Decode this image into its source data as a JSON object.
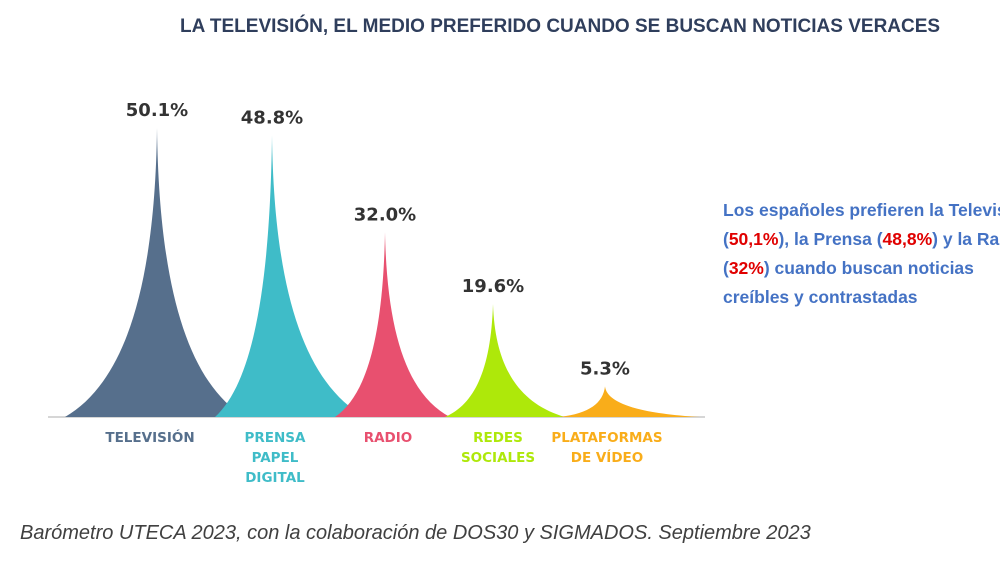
{
  "title": "LA TELEVISIÓN, EL MEDIO PREFERIDO CUANDO SE BUSCAN NOTICIAS VERACES",
  "chart_data": {
    "type": "area",
    "title": "",
    "categories": [
      [
        "TELEVISIÓN"
      ],
      [
        "PRENSA",
        "PAPEL",
        "DIGITAL"
      ],
      [
        "RADIO"
      ],
      [
        "REDES",
        "SOCIALES"
      ],
      [
        "PLATAFORMAS",
        "DE VÍDEO"
      ]
    ],
    "values": [
      50.1,
      48.8,
      32.0,
      19.6,
      5.3
    ],
    "data_labels": [
      "50.1%",
      "48.8%",
      "32.0%",
      "19.6%",
      "5.3%"
    ],
    "colors": [
      "#566f8c",
      "#3fbcc8",
      "#e8506f",
      "#aee80a",
      "#f9ad1a"
    ],
    "label_colors": [
      "#566f8c",
      "#3fbcc8",
      "#e8506f",
      "#aee80a",
      "#f9ad1a"
    ],
    "ylim": [
      0,
      50.1
    ],
    "grid": false,
    "legend": "none"
  },
  "note": {
    "line1": "Los españoles prefieren la Televisión",
    "line2_a": "(",
    "line2_b": "50,1%",
    "line2_c": "), la Prensa  (",
    "line2_d": "48,8%",
    "line2_e": ") y la Radio",
    "line3_a": "(",
    "line3_b": "32%",
    "line3_c": ") cuando buscan noticias",
    "line4": "creíbles y contrastadas"
  },
  "source": "Barómetro UTECA 2023, con la colaboración de DOS30 y SIGMADOS. Septiembre 2023"
}
